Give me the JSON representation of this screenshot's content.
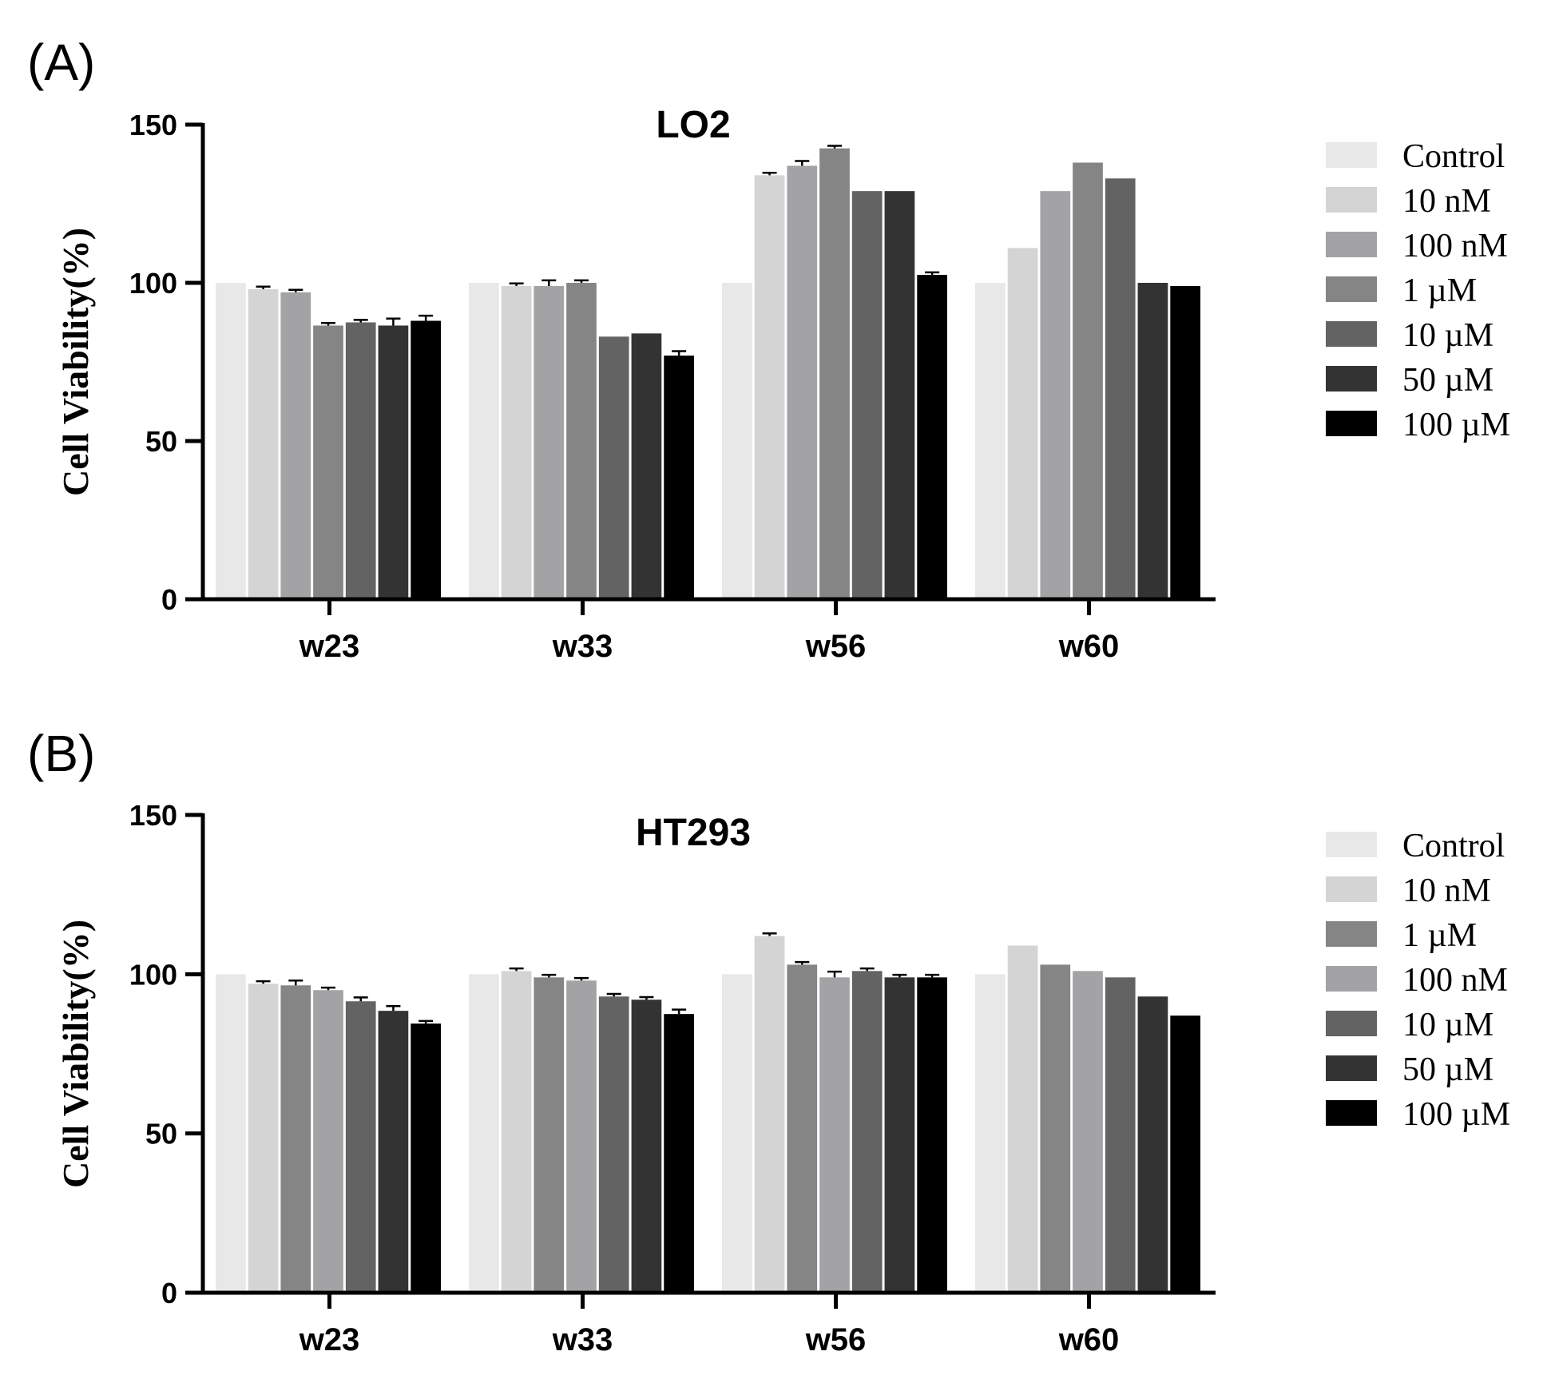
{
  "chart_data": [
    {
      "type": "bar",
      "panel_label": "(A)",
      "title": "LO2",
      "xlabel": "",
      "ylabel": "Cell Viability(%)",
      "ylim": [
        0,
        150
      ],
      "yticks": [
        "0",
        "50",
        "100",
        "150"
      ],
      "categories": [
        "w23",
        "w33",
        "w56",
        "w60"
      ],
      "legend_position": "right",
      "series": [
        {
          "name": "Control",
          "color": "#e8e8e8",
          "values": [
            100,
            100,
            100,
            100
          ],
          "errors": [
            0,
            0,
            0,
            0
          ]
        },
        {
          "name": "10 nM",
          "color": "#d4d4d4",
          "values": [
            98,
            99,
            134,
            111
          ],
          "errors": [
            0.8,
            0.8,
            0.8,
            0
          ]
        },
        {
          "name": "100 nM",
          "color": "#a3a3a6",
          "values": [
            97,
            99,
            137,
            129
          ],
          "errors": [
            0.8,
            1.8,
            1.5,
            0
          ]
        },
        {
          "name": "1 µM",
          "color": "#858585",
          "values": [
            86.5,
            100,
            142.5,
            138
          ],
          "errors": [
            0.8,
            0.8,
            0.8,
            0
          ]
        },
        {
          "name": "10 µM",
          "color": "#636363",
          "values": [
            87.5,
            83,
            129,
            133
          ],
          "errors": [
            0.8,
            0,
            0,
            0
          ]
        },
        {
          "name": "50 µM",
          "color": "#333333",
          "values": [
            86.5,
            84,
            129,
            100
          ],
          "errors": [
            2.2,
            0,
            0,
            0
          ]
        },
        {
          "name": "100 µM",
          "color": "#000000",
          "values": [
            88,
            77,
            102.5,
            99
          ],
          "errors": [
            1.6,
            1.4,
            0.8,
            0
          ]
        }
      ]
    },
    {
      "type": "bar",
      "panel_label": "(B)",
      "title": "HT293",
      "xlabel": "",
      "ylabel": "Cell Viability(%)",
      "ylim": [
        0,
        150
      ],
      "yticks": [
        "0",
        "50",
        "100",
        "150"
      ],
      "categories": [
        "w23",
        "w33",
        "w56",
        "w60"
      ],
      "legend_position": "right",
      "series": [
        {
          "name": "Control",
          "color": "#e8e8e8",
          "values": [
            100,
            100,
            100,
            100
          ],
          "errors": [
            0,
            0,
            0,
            0
          ]
        },
        {
          "name": "10 nM",
          "color": "#d4d4d4",
          "values": [
            97,
            101,
            112,
            109
          ],
          "errors": [
            0.8,
            0.8,
            0.8,
            0
          ]
        },
        {
          "name": "1 µM",
          "color": "#858585",
          "values": [
            96.5,
            99,
            103,
            103
          ],
          "errors": [
            1.5,
            0.8,
            0.8,
            0
          ]
        },
        {
          "name": "100 nM",
          "color": "#a3a3a6",
          "values": [
            95,
            98,
            99,
            101
          ],
          "errors": [
            0.8,
            0.8,
            1.8,
            0
          ]
        },
        {
          "name": "10 µM",
          "color": "#636363",
          "values": [
            91.5,
            93,
            101,
            99
          ],
          "errors": [
            1.2,
            0.8,
            0.8,
            0
          ]
        },
        {
          "name": "50 µM",
          "color": "#333333",
          "values": [
            88.5,
            92,
            99,
            93
          ],
          "errors": [
            1.5,
            0.8,
            0.8,
            0
          ]
        },
        {
          "name": "100 µM",
          "color": "#000000",
          "values": [
            84.5,
            87.5,
            99,
            87
          ],
          "errors": [
            0.8,
            1.4,
            0.8,
            0
          ]
        }
      ]
    }
  ]
}
